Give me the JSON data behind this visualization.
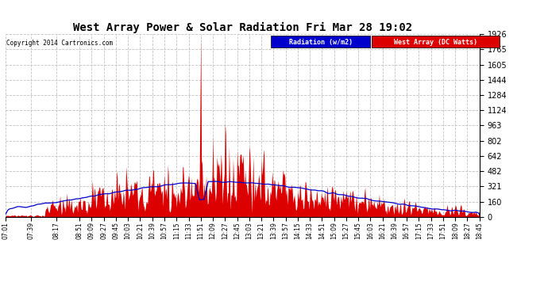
{
  "title": "West Array Power & Solar Radiation Fri Mar 28 19:02",
  "copyright": "Copyright 2014 Cartronics.com",
  "legend_blue": "Radiation (w/m2)",
  "legend_red": "West Array (DC Watts)",
  "y_max": 1925.9,
  "y_ticks": [
    0.0,
    160.5,
    321.0,
    481.5,
    642.0,
    802.5,
    963.0,
    1123.5,
    1284.0,
    1444.5,
    1605.0,
    1765.4,
    1925.9
  ],
  "bg_color": "#ffffff",
  "grid_color": "#bbbbbb",
  "red_color": "#dd0000",
  "blue_color": "#0000cc",
  "title_color": "#000000",
  "time_labels": [
    "07:01",
    "07:39",
    "08:17",
    "08:51",
    "09:09",
    "09:27",
    "09:45",
    "10:03",
    "10:21",
    "10:39",
    "10:57",
    "11:15",
    "11:33",
    "11:51",
    "12:09",
    "12:27",
    "12:45",
    "13:03",
    "13:21",
    "13:39",
    "13:57",
    "14:15",
    "14:33",
    "14:51",
    "15:09",
    "15:27",
    "15:45",
    "16:03",
    "16:21",
    "16:39",
    "16:57",
    "17:15",
    "17:33",
    "17:51",
    "18:09",
    "18:27",
    "18:45"
  ]
}
